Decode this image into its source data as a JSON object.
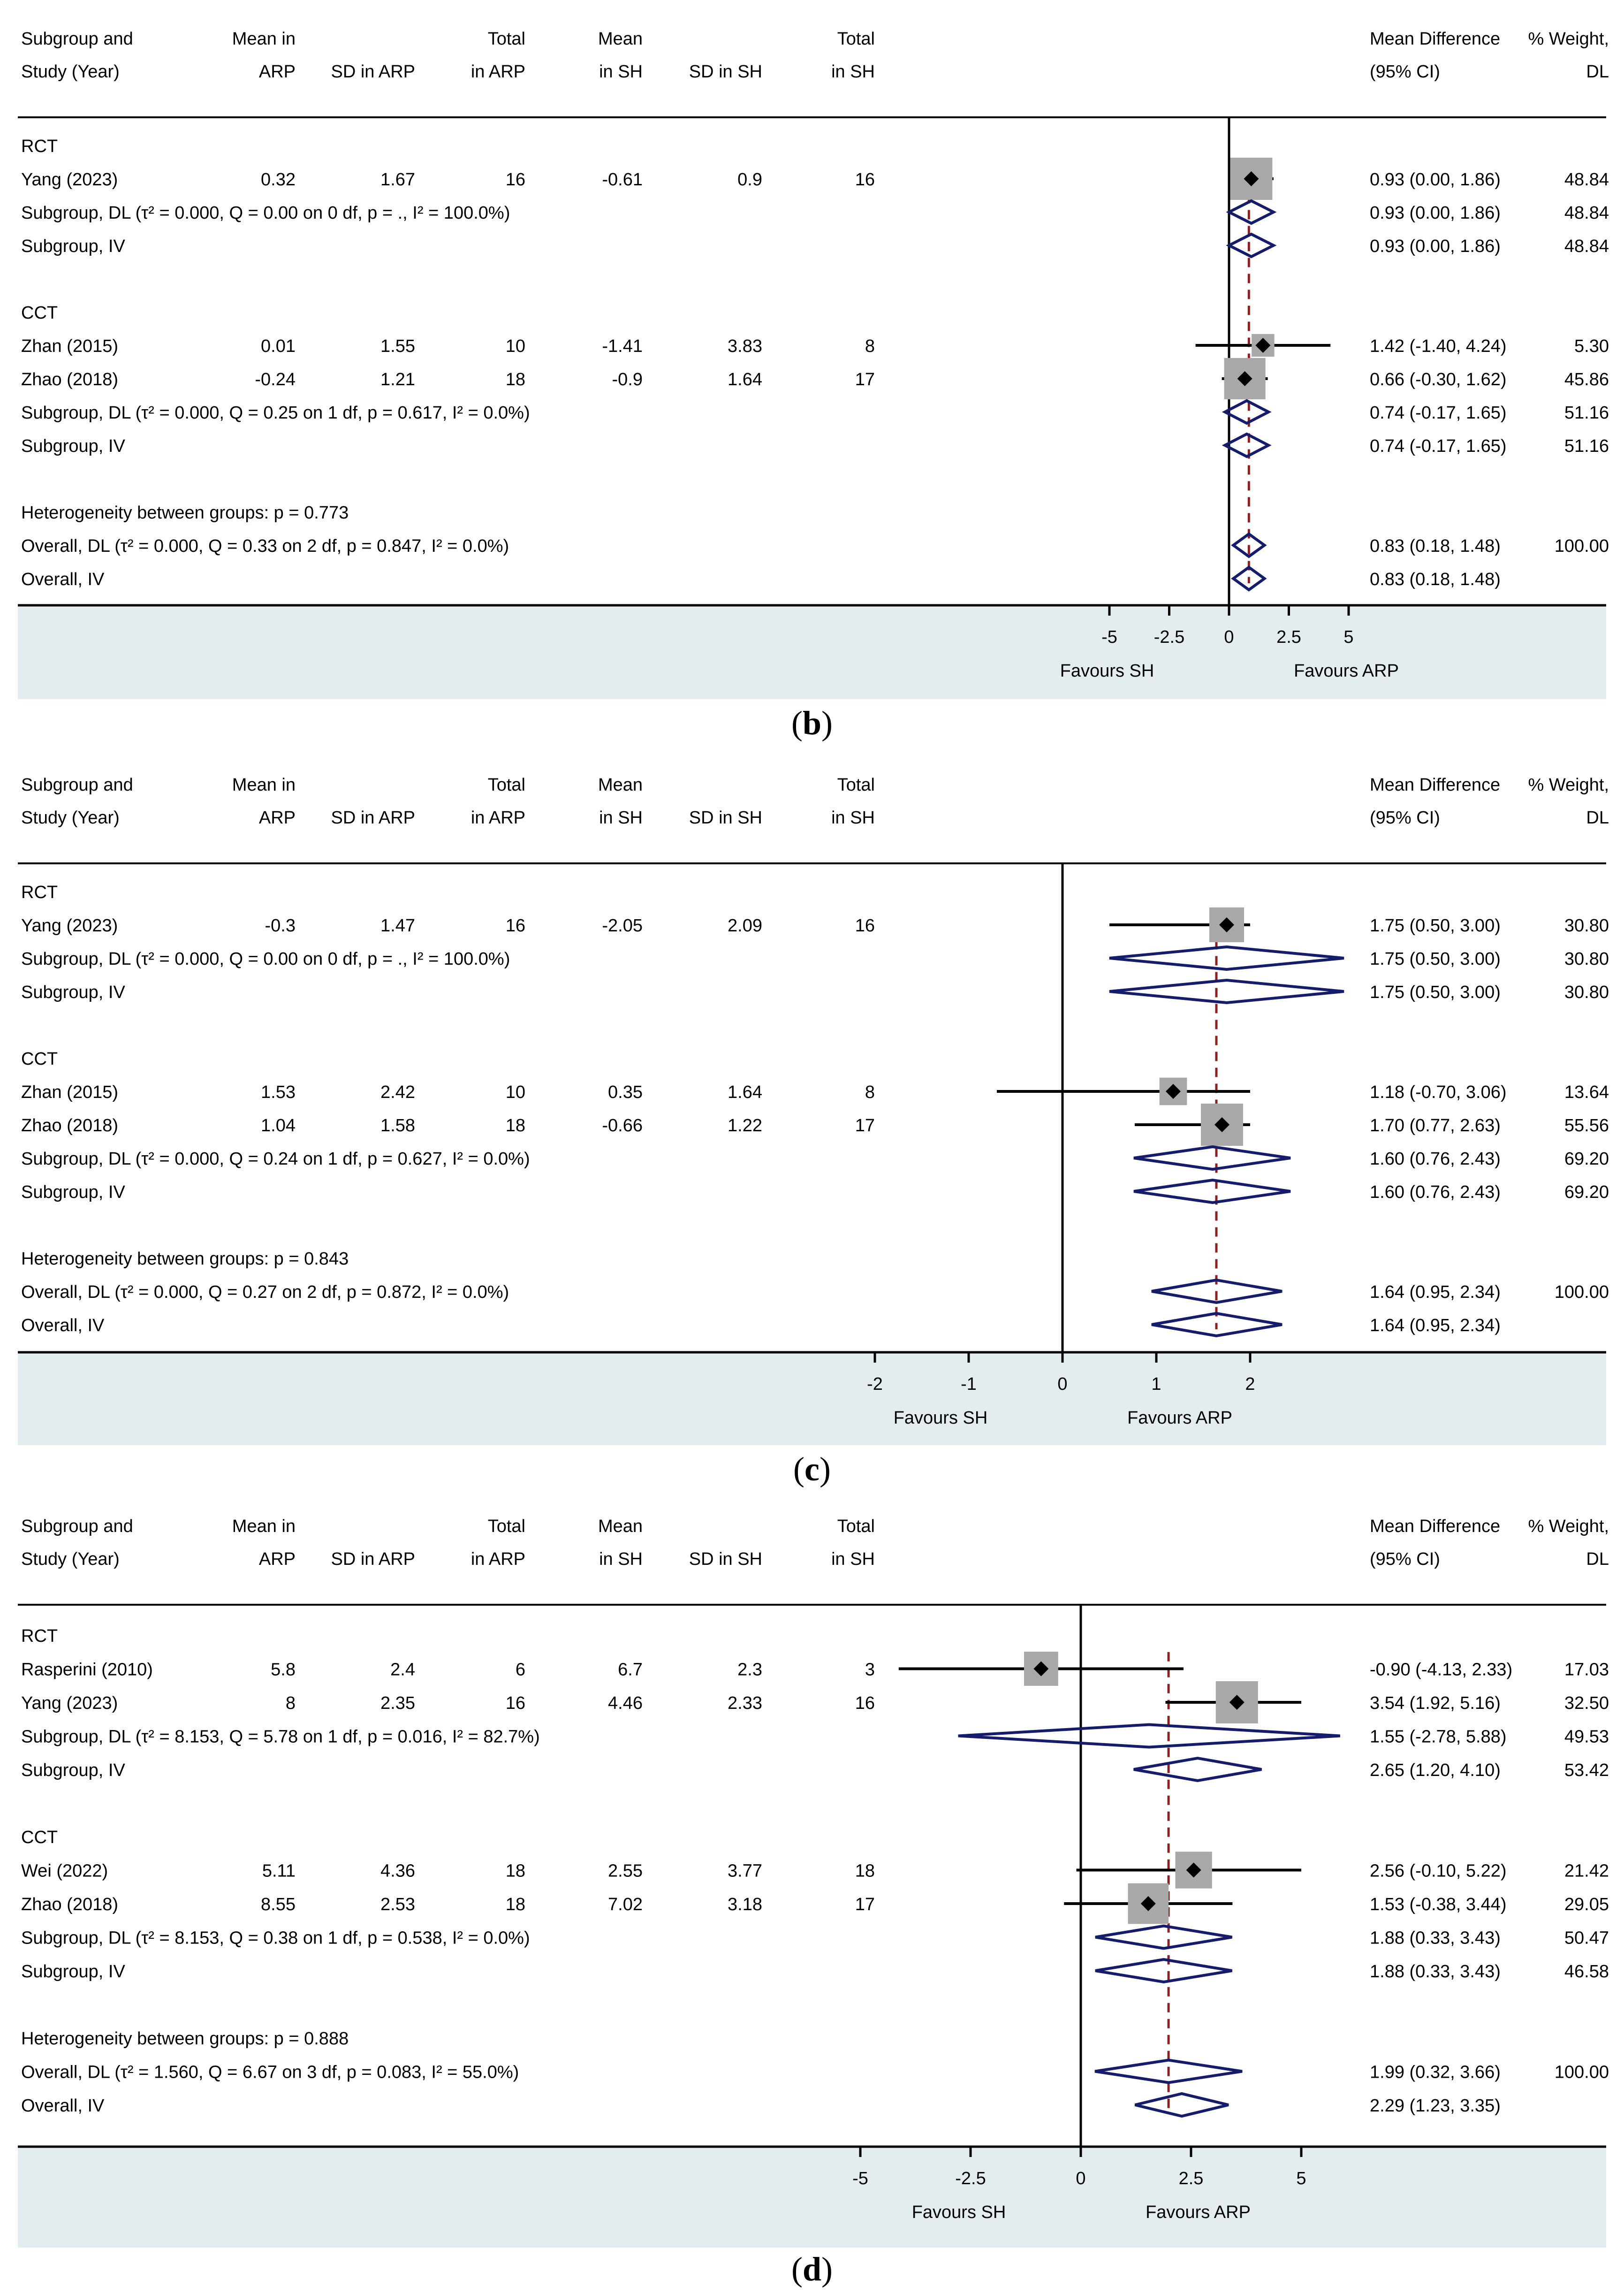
{
  "panel_labels": [
    "b",
    "c",
    "d"
  ],
  "chart_data": [
    {
      "type": "forest",
      "label": "b",
      "columns": {
        "c1": [
          "Subgroup and",
          "Study (Year)"
        ],
        "c2": [
          "Mean in",
          "ARP"
        ],
        "c3": [
          "",
          "SD in ARP"
        ],
        "c4": [
          "Total",
          "in ARP"
        ],
        "c5": [
          "Mean",
          "in SH"
        ],
        "c6": [
          "",
          "SD in SH"
        ],
        "c7": [
          "Total",
          "in SH"
        ],
        "c8": [
          "Mean Difference",
          "(95% CI)"
        ],
        "c9": [
          "% Weight,",
          "DL"
        ]
      },
      "xlim": [
        -5,
        5
      ],
      "ticks": [
        "-5",
        "-2.5",
        "0",
        "2.5",
        "5"
      ],
      "tick_values": [
        -5,
        -2.5,
        0,
        2.5,
        5
      ],
      "favours_left": "Favours SH",
      "favours_right": "Favours ARP",
      "overall_line": 0.83,
      "rows": [
        {
          "kind": "header",
          "label": "RCT"
        },
        {
          "kind": "study",
          "label": "Yang (2023)",
          "mean_arp": "0.32",
          "sd_arp": "1.67",
          "n_arp": "16",
          "mean_sh": "-0.61",
          "sd_sh": "0.9",
          "n_sh": "16",
          "es": 0.93,
          "lo": 0.0,
          "hi": 1.86,
          "ci_text": "0.93 (0.00, 1.86)",
          "weight": "48.84",
          "w": 48.84
        },
        {
          "kind": "diamond",
          "label": "Subgroup, DL (τ² = 0.000, Q = 0.00 on 0 df,  p = ., I² = 100.0%)",
          "es": 0.93,
          "lo": 0.0,
          "hi": 1.86,
          "ci_text": "0.93 (0.00, 1.86)",
          "weight": "48.84"
        },
        {
          "kind": "diamond",
          "label": "Subgroup, IV",
          "es": 0.93,
          "lo": 0.0,
          "hi": 1.86,
          "ci_text": "0.93 (0.00, 1.86)",
          "weight": "48.84"
        },
        {
          "kind": "blank"
        },
        {
          "kind": "header",
          "label": "CCT"
        },
        {
          "kind": "study",
          "label": "Zhan (2015)",
          "mean_arp": "0.01",
          "sd_arp": "1.55",
          "n_arp": "10",
          "mean_sh": "-1.41",
          "sd_sh": "3.83",
          "n_sh": "8",
          "es": 1.42,
          "lo": -1.4,
          "hi": 4.24,
          "ci_text": "1.42 (-1.40, 4.24)",
          "weight": "5.30",
          "w": 5.3
        },
        {
          "kind": "study",
          "label": "Zhao (2018)",
          "mean_arp": "-0.24",
          "sd_arp": "1.21",
          "n_arp": "18",
          "mean_sh": "-0.9",
          "sd_sh": "1.64",
          "n_sh": "17",
          "es": 0.66,
          "lo": -0.3,
          "hi": 1.62,
          "ci_text": "0.66 (-0.30, 1.62)",
          "weight": "45.86",
          "w": 45.86
        },
        {
          "kind": "diamond",
          "label": "Subgroup, DL (τ² = 0.000, Q = 0.25 on 1 df,  p = 0.617, I² = 0.0%)",
          "es": 0.74,
          "lo": -0.17,
          "hi": 1.65,
          "ci_text": "0.74 (-0.17, 1.65)",
          "weight": "51.16"
        },
        {
          "kind": "diamond",
          "label": "Subgroup, IV",
          "es": 0.74,
          "lo": -0.17,
          "hi": 1.65,
          "ci_text": "0.74 (-0.17, 1.65)",
          "weight": "51.16"
        },
        {
          "kind": "blank"
        },
        {
          "kind": "text",
          "label": "Heterogeneity between groups:  p = 0.773"
        },
        {
          "kind": "diamond",
          "label": "Overall, DL (τ² = 0.000, Q = 0.33 on 2 df,  p = 0.847, I² = 0.0%)",
          "es": 0.83,
          "lo": 0.18,
          "hi": 1.48,
          "ci_text": "0.83 (0.18, 1.48)",
          "weight": "100.00"
        },
        {
          "kind": "diamond",
          "label": "Overall, IV",
          "es": 0.83,
          "lo": 0.18,
          "hi": 1.48,
          "ci_text": "0.83 (0.18, 1.48)",
          "weight": ""
        }
      ]
    },
    {
      "type": "forest",
      "label": "c",
      "columns": {
        "c1": [
          "Subgroup and",
          "Study (Year)"
        ],
        "c2": [
          "Mean in",
          "ARP"
        ],
        "c3": [
          "",
          "SD in ARP"
        ],
        "c4": [
          "Total",
          "in ARP"
        ],
        "c5": [
          "Mean",
          "in SH"
        ],
        "c6": [
          "",
          "SD in SH"
        ],
        "c7": [
          "Total",
          "in SH"
        ],
        "c8": [
          "Mean Difference",
          "(95% CI)"
        ],
        "c9": [
          "% Weight,",
          "DL"
        ]
      },
      "xlim": [
        -2,
        2
      ],
      "ticks": [
        "-2",
        "-1",
        "0",
        "1",
        "2"
      ],
      "tick_values": [
        -2,
        -1,
        0,
        1,
        2
      ],
      "favours_left": "Favours SH",
      "favours_right": "Favours ARP",
      "overall_line": 1.64,
      "rows": [
        {
          "kind": "header",
          "label": "RCT"
        },
        {
          "kind": "study",
          "label": "Yang (2023)",
          "mean_arp": "-0.3",
          "sd_arp": "1.47",
          "n_arp": "16",
          "mean_sh": "-2.05",
          "sd_sh": "2.09",
          "n_sh": "16",
          "es": 1.75,
          "lo": 0.5,
          "hi": 3.0,
          "ci_text": "1.75 (0.50, 3.00)",
          "weight": "30.80",
          "w": 30.8
        },
        {
          "kind": "diamond",
          "label": "Subgroup, DL (τ² = 0.000, Q = 0.00 on 0 df,  p = ., I² = 100.0%)",
          "es": 1.75,
          "lo": 0.5,
          "hi": 3.0,
          "ci_text": "1.75 (0.50, 3.00)",
          "weight": "30.80"
        },
        {
          "kind": "diamond",
          "label": "Subgroup, IV",
          "es": 1.75,
          "lo": 0.5,
          "hi": 3.0,
          "ci_text": "1.75 (0.50, 3.00)",
          "weight": "30.80"
        },
        {
          "kind": "blank"
        },
        {
          "kind": "header",
          "label": "CCT"
        },
        {
          "kind": "study",
          "label": "Zhan (2015)",
          "mean_arp": "1.53",
          "sd_arp": "2.42",
          "n_arp": "10",
          "mean_sh": "0.35",
          "sd_sh": "1.64",
          "n_sh": "8",
          "es": 1.18,
          "lo": -0.7,
          "hi": 3.06,
          "ci_text": "1.18 (-0.70, 3.06)",
          "weight": "13.64",
          "w": 13.64
        },
        {
          "kind": "study",
          "label": "Zhao (2018)",
          "mean_arp": "1.04",
          "sd_arp": "1.58",
          "n_arp": "18",
          "mean_sh": "-0.66",
          "sd_sh": "1.22",
          "n_sh": "17",
          "es": 1.7,
          "lo": 0.77,
          "hi": 2.63,
          "ci_text": "1.70 (0.77, 2.63)",
          "weight": "55.56",
          "w": 55.56
        },
        {
          "kind": "diamond",
          "label": "Subgroup, DL (τ² = 0.000, Q = 0.24 on 1 df,  p = 0.627, I² = 0.0%)",
          "es": 1.6,
          "lo": 0.76,
          "hi": 2.43,
          "ci_text": "1.60 (0.76, 2.43)",
          "weight": "69.20"
        },
        {
          "kind": "diamond",
          "label": "Subgroup, IV",
          "es": 1.6,
          "lo": 0.76,
          "hi": 2.43,
          "ci_text": "1.60 (0.76, 2.43)",
          "weight": "69.20"
        },
        {
          "kind": "blank"
        },
        {
          "kind": "text",
          "label": "Heterogeneity between groups:  p = 0.843"
        },
        {
          "kind": "diamond",
          "label": "Overall, DL (τ² = 0.000, Q = 0.27 on 2 df,  p = 0.872, I² = 0.0%)",
          "es": 1.64,
          "lo": 0.95,
          "hi": 2.34,
          "ci_text": "1.64 (0.95, 2.34)",
          "weight": "100.00"
        },
        {
          "kind": "diamond",
          "label": "Overall, IV",
          "es": 1.64,
          "lo": 0.95,
          "hi": 2.34,
          "ci_text": "1.64 (0.95, 2.34)",
          "weight": ""
        }
      ]
    },
    {
      "type": "forest",
      "label": "d",
      "columns": {
        "c1": [
          "Subgroup and",
          "Study (Year)"
        ],
        "c2": [
          "Mean in",
          "ARP"
        ],
        "c3": [
          "",
          "SD in ARP"
        ],
        "c4": [
          "Total",
          "in ARP"
        ],
        "c5": [
          "Mean",
          "in SH"
        ],
        "c6": [
          "",
          "SD in SH"
        ],
        "c7": [
          "Total",
          "in SH"
        ],
        "c8": [
          "Mean Difference",
          "(95% CI)"
        ],
        "c9": [
          "% Weight,",
          "DL"
        ]
      },
      "xlim": [
        -5,
        5
      ],
      "ticks": [
        "-5",
        "-2.5",
        "0",
        "2.5",
        "5"
      ],
      "tick_values": [
        -5,
        -2.5,
        0,
        2.5,
        5
      ],
      "favours_left": "Favours SH",
      "favours_right": "Favours ARP",
      "overall_line": 1.99,
      "rows": [
        {
          "kind": "header",
          "label": "RCT"
        },
        {
          "kind": "study",
          "label": "Rasperini (2010)",
          "mean_arp": "5.8",
          "sd_arp": "2.4",
          "n_arp": "6",
          "mean_sh": "6.7",
          "sd_sh": "2.3",
          "n_sh": "3",
          "es": -0.9,
          "lo": -4.13,
          "hi": 2.33,
          "ci_text": "-0.90 (-4.13, 2.33)",
          "weight": "17.03",
          "w": 17.03
        },
        {
          "kind": "study",
          "label": "Yang (2023)",
          "mean_arp": "8",
          "sd_arp": "2.35",
          "n_arp": "16",
          "mean_sh": "4.46",
          "sd_sh": "2.33",
          "n_sh": "16",
          "es": 3.54,
          "lo": 1.92,
          "hi": 5.16,
          "ci_text": "3.54 (1.92, 5.16)",
          "weight": "32.50",
          "w": 32.5
        },
        {
          "kind": "diamond",
          "label": "Subgroup, DL (τ² = 8.153, Q = 5.78 on 1 df,  p = 0.016, I² = 82.7%)",
          "es": 1.55,
          "lo": -2.78,
          "hi": 5.88,
          "ci_text": "1.55 (-2.78, 5.88)",
          "weight": "49.53"
        },
        {
          "kind": "diamond",
          "label": "Subgroup, IV",
          "es": 2.65,
          "lo": 1.2,
          "hi": 4.1,
          "ci_text": "2.65 (1.20, 4.10)",
          "weight": "53.42"
        },
        {
          "kind": "blank"
        },
        {
          "kind": "header",
          "label": "CCT"
        },
        {
          "kind": "study",
          "label": "Wei (2022)",
          "mean_arp": "5.11",
          "sd_arp": "4.36",
          "n_arp": "18",
          "mean_sh": "2.55",
          "sd_sh": "3.77",
          "n_sh": "18",
          "es": 2.56,
          "lo": -0.1,
          "hi": 5.22,
          "ci_text": "2.56 (-0.10, 5.22)",
          "weight": "21.42",
          "w": 21.42
        },
        {
          "kind": "study",
          "label": "Zhao (2018)",
          "mean_arp": "8.55",
          "sd_arp": "2.53",
          "n_arp": "18",
          "mean_sh": "7.02",
          "sd_sh": "3.18",
          "n_sh": "17",
          "es": 1.53,
          "lo": -0.38,
          "hi": 3.44,
          "ci_text": "1.53 (-0.38, 3.44)",
          "weight": "29.05",
          "w": 29.05
        },
        {
          "kind": "diamond",
          "label": "Subgroup, DL (τ² = 8.153, Q = 0.38 on 1 df,  p = 0.538, I² = 0.0%)",
          "es": 1.88,
          "lo": 0.33,
          "hi": 3.43,
          "ci_text": "1.88 (0.33, 3.43)",
          "weight": "50.47"
        },
        {
          "kind": "diamond",
          "label": "Subgroup, IV",
          "es": 1.88,
          "lo": 0.33,
          "hi": 3.43,
          "ci_text": "1.88 (0.33, 3.43)",
          "weight": "46.58"
        },
        {
          "kind": "blank"
        },
        {
          "kind": "text",
          "label": "Heterogeneity between groups:  p = 0.888"
        },
        {
          "kind": "diamond",
          "label": "Overall, DL (τ² = 1.560, Q = 6.67 on 3 df,  p = 0.083, I² = 55.0%)",
          "es": 1.99,
          "lo": 0.32,
          "hi": 3.66,
          "ci_text": "1.99 (0.32, 3.66)",
          "weight": "100.00"
        },
        {
          "kind": "diamond",
          "label": "Overall, IV",
          "es": 2.29,
          "lo": 1.23,
          "hi": 3.35,
          "ci_text": "2.29 (1.23, 3.35)",
          "weight": ""
        }
      ]
    }
  ]
}
